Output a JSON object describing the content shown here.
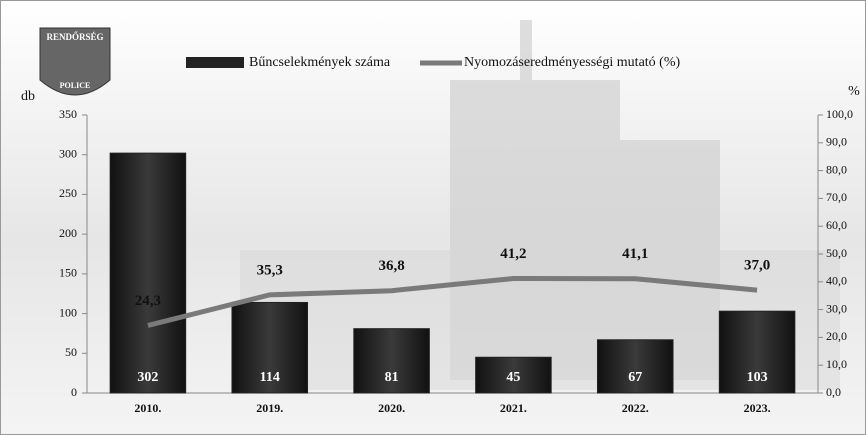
{
  "logo": {
    "top": "RENDŐRSÉG",
    "bottom": "POLICE"
  },
  "chart_data": {
    "type": "bar",
    "y_label": "db",
    "y2_label": "%",
    "categories": [
      "2010.",
      "2019.",
      "2020.",
      "2021.",
      "2022.",
      "2023."
    ],
    "series": [
      {
        "name": "Bűncselekmények száma",
        "color": "#232323",
        "type": "bar",
        "values": [
          302,
          114,
          81,
          45,
          67,
          103
        ]
      },
      {
        "name": "Nyomozáseredményességi mutató (%)",
        "color": "#7a7a7a",
        "type": "line",
        "axis": "y2",
        "values": [
          24.3,
          35.3,
          36.8,
          41.2,
          41.1,
          37.0
        ],
        "value_labels": [
          "24,3",
          "35,3",
          "36,8",
          "41,2",
          "41,1",
          "37,0"
        ]
      }
    ],
    "ylim": [
      0,
      350
    ],
    "yticks": [
      0,
      50,
      100,
      150,
      200,
      250,
      300,
      350
    ],
    "y2lim": [
      0,
      100
    ],
    "y2ticks": [
      {
        "value": 0,
        "label": "0,0"
      },
      {
        "value": 10,
        "label": "10,0"
      },
      {
        "value": 20,
        "label": "20,0"
      },
      {
        "value": 30,
        "label": "30,0"
      },
      {
        "value": 40,
        "label": "40,0"
      },
      {
        "value": 50,
        "label": "50,0"
      },
      {
        "value": 60,
        "label": "60,0"
      },
      {
        "value": 70,
        "label": "70,0"
      },
      {
        "value": 80,
        "label": "80,0"
      },
      {
        "value": 90,
        "label": "90,0"
      },
      {
        "value": 100,
        "label": "100,0"
      }
    ],
    "legend": "top"
  }
}
